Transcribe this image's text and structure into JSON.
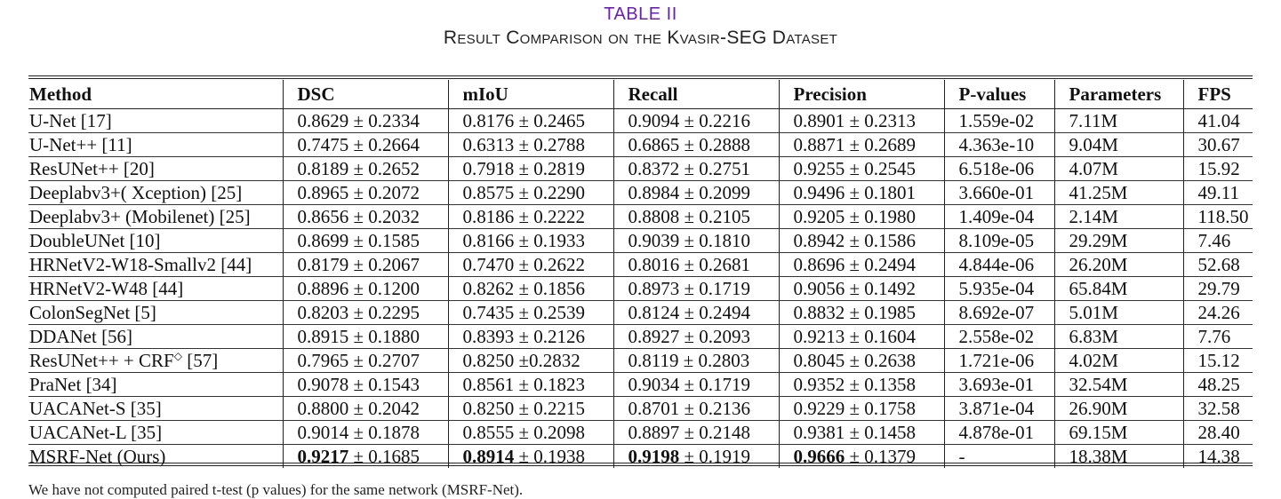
{
  "caption": {
    "number": "TABLE II",
    "title": "Result Comparison on the Kvasir-SEG Dataset"
  },
  "headers": [
    "Method",
    "DSC",
    "mIoU",
    "Recall",
    "Precision",
    "P-values",
    "Parameters",
    "FPS"
  ],
  "rows": [
    {
      "method": "U-Net [17]",
      "dsc": "0.8629 ± 0.2334",
      "miou": "0.8176 ± 0.2465",
      "recall": "0.9094 ± 0.2216",
      "precision": "0.8901 ± 0.2313",
      "pvalue": "1.559e-02",
      "params": "7.11M",
      "fps": "41.04"
    },
    {
      "method": "U-Net++ [11]",
      "dsc": "0.7475 ± 0.2664",
      "miou": "0.6313 ± 0.2788",
      "recall": "0.6865 ± 0.2888",
      "precision": "0.8871 ± 0.2689",
      "pvalue": "4.363e-10",
      "params": "9.04M",
      "fps": "30.67"
    },
    {
      "method": "ResUNet++ [20]",
      "dsc": "0.8189 ± 0.2652",
      "miou": "0.7918 ± 0.2819",
      "recall": "0.8372 ± 0.2751",
      "precision": "0.9255 ± 0.2545",
      "pvalue": "6.518e-06",
      "params": "4.07M",
      "fps": "15.92"
    },
    {
      "method": "Deeplabv3+( Xception) [25]",
      "dsc": "0.8965 ± 0.2072",
      "miou": "0.8575 ± 0.2290",
      "recall": "0.8984 ± 0.2099",
      "precision": "0.9496 ± 0.1801",
      "pvalue": "3.660e-01",
      "params": "41.25M",
      "fps": "49.11"
    },
    {
      "method": "Deeplabv3+ (Mobilenet) [25]",
      "dsc": "0.8656 ± 0.2032",
      "miou": "0.8186 ± 0.2222",
      "recall": "0.8808 ± 0.2105",
      "precision": "0.9205 ± 0.1980",
      "pvalue": "1.409e-04",
      "params": "2.14M",
      "fps": "118.50"
    },
    {
      "method": "DoubleUNet [10]",
      "dsc": "0.8699 ± 0.1585",
      "miou": "0.8166 ± 0.1933",
      "recall": "0.9039 ± 0.1810",
      "precision": "0.8942 ± 0.1586",
      "pvalue": "8.109e-05",
      "params": "29.29M",
      "fps": "7.46"
    },
    {
      "method": "HRNetV2-W18-Smallv2 [44]",
      "dsc": "0.8179 ± 0.2067",
      "miou": "0.7470 ± 0.2622",
      "recall": "0.8016 ± 0.2681",
      "precision": "0.8696 ± 0.2494",
      "pvalue": "4.844e-06",
      "params": "26.20M",
      "fps": "52.68"
    },
    {
      "method": "HRNetV2-W48 [44]",
      "dsc": "0.8896 ± 0.1200",
      "miou": "0.8262 ± 0.1856",
      "recall": "0.8973 ± 0.1719",
      "precision": "0.9056 ± 0.1492",
      "pvalue": "5.935e-04",
      "params": "65.84M",
      "fps": "29.79"
    },
    {
      "method": "ColonSegNet [5]",
      "dsc": "0.8203 ± 0.2295",
      "miou": "0.7435 ± 0.2539",
      "recall": "0.8124 ± 0.2494",
      "precision": "0.8832 ± 0.1985",
      "pvalue": "8.692e-07",
      "params": "5.01M",
      "fps": "24.26"
    },
    {
      "method": "DDANet [56]",
      "dsc": "0.8915 ± 0.1880",
      "miou": "0.8393 ± 0.2126",
      "recall": "0.8927 ± 0.2093",
      "precision": "0.9213 ± 0.1604",
      "pvalue": "2.558e-02",
      "params": "6.83M",
      "fps": "7.76"
    },
    {
      "method": "ResUNet++ + CRF",
      "method_sup": "◇",
      "method_ref": " [57]",
      "dsc": "0.7965 ± 0.2707",
      "miou": "0.8250 ±0.2832",
      "recall": "0.8119 ± 0.2803",
      "precision": "0.8045 ± 0.2638",
      "pvalue": "1.721e-06",
      "params": "4.02M",
      "fps": "15.12"
    },
    {
      "method": "PraNet [34]",
      "dsc": "0.9078 ± 0.1543",
      "miou": "0.8561 ± 0.1823",
      "recall": "0.9034 ± 0.1719",
      "precision": "0.9352 ± 0.1358",
      "pvalue": "3.693e-01",
      "params": "32.54M",
      "fps": "48.25"
    },
    {
      "method": "UACANet-S [35]",
      "dsc": "0.8800 ± 0.2042",
      "miou": "0.8250 ± 0.2215",
      "recall": "0.8701 ± 0.2136",
      "precision": "0.9229 ± 0.1758",
      "pvalue": "3.871e-04",
      "params": "26.90M",
      "fps": "32.58"
    },
    {
      "method": "UACANet-L [35]",
      "dsc": "0.9014 ± 0.1878",
      "miou": "0.8555 ± 0.2098",
      "recall": "0.8897 ± 0.2148",
      "precision": "0.9381 ± 0.1458",
      "pvalue": "4.878e-01",
      "params": "69.15M",
      "fps": "28.40"
    }
  ],
  "best_row": {
    "method": "MSRF-Net (Ours)",
    "dsc_mean": "0.9217",
    "dsc_std": " ± 0.1685",
    "miou_mean": "0.8914",
    "miou_std": " ± 0.1938",
    "recall_mean": "0.9198",
    "recall_std": " ± 0.1919",
    "precision_mean": "0.9666",
    "precision_std": " ± 0.1379",
    "pvalue": "-",
    "params": "18.38M",
    "fps": "14.38"
  },
  "footnote": "We have not computed paired t-test (p values) for the same network (MSRF-Net)."
}
